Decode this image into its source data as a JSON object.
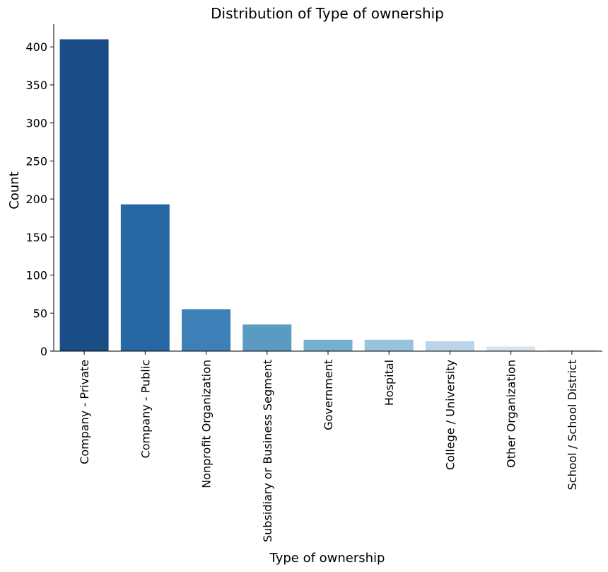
{
  "chart_data": {
    "type": "bar",
    "title": "Distribution of Type of ownership",
    "xlabel": "Type of ownership",
    "ylabel": "Count",
    "categories": [
      "Company - Private",
      "Company - Public",
      "Nonprofit Organization",
      "Subsidiary or Business Segment",
      "Government",
      "Hospital",
      "College / University",
      "Other Organization",
      "School / School District"
    ],
    "values": [
      410,
      193,
      55,
      35,
      15,
      15,
      13,
      6,
      2
    ],
    "colors": [
      "#1a4c86",
      "#2767a3",
      "#3d80b8",
      "#5b9ac3",
      "#77afd3",
      "#99c3dd",
      "#bcd4e9",
      "#d6e4f0",
      "#e8eef7"
    ],
    "ylim": [
      0,
      430
    ],
    "yticks": [
      0,
      50,
      100,
      150,
      200,
      250,
      300,
      350,
      400
    ],
    "grid": false,
    "legend": "none"
  }
}
